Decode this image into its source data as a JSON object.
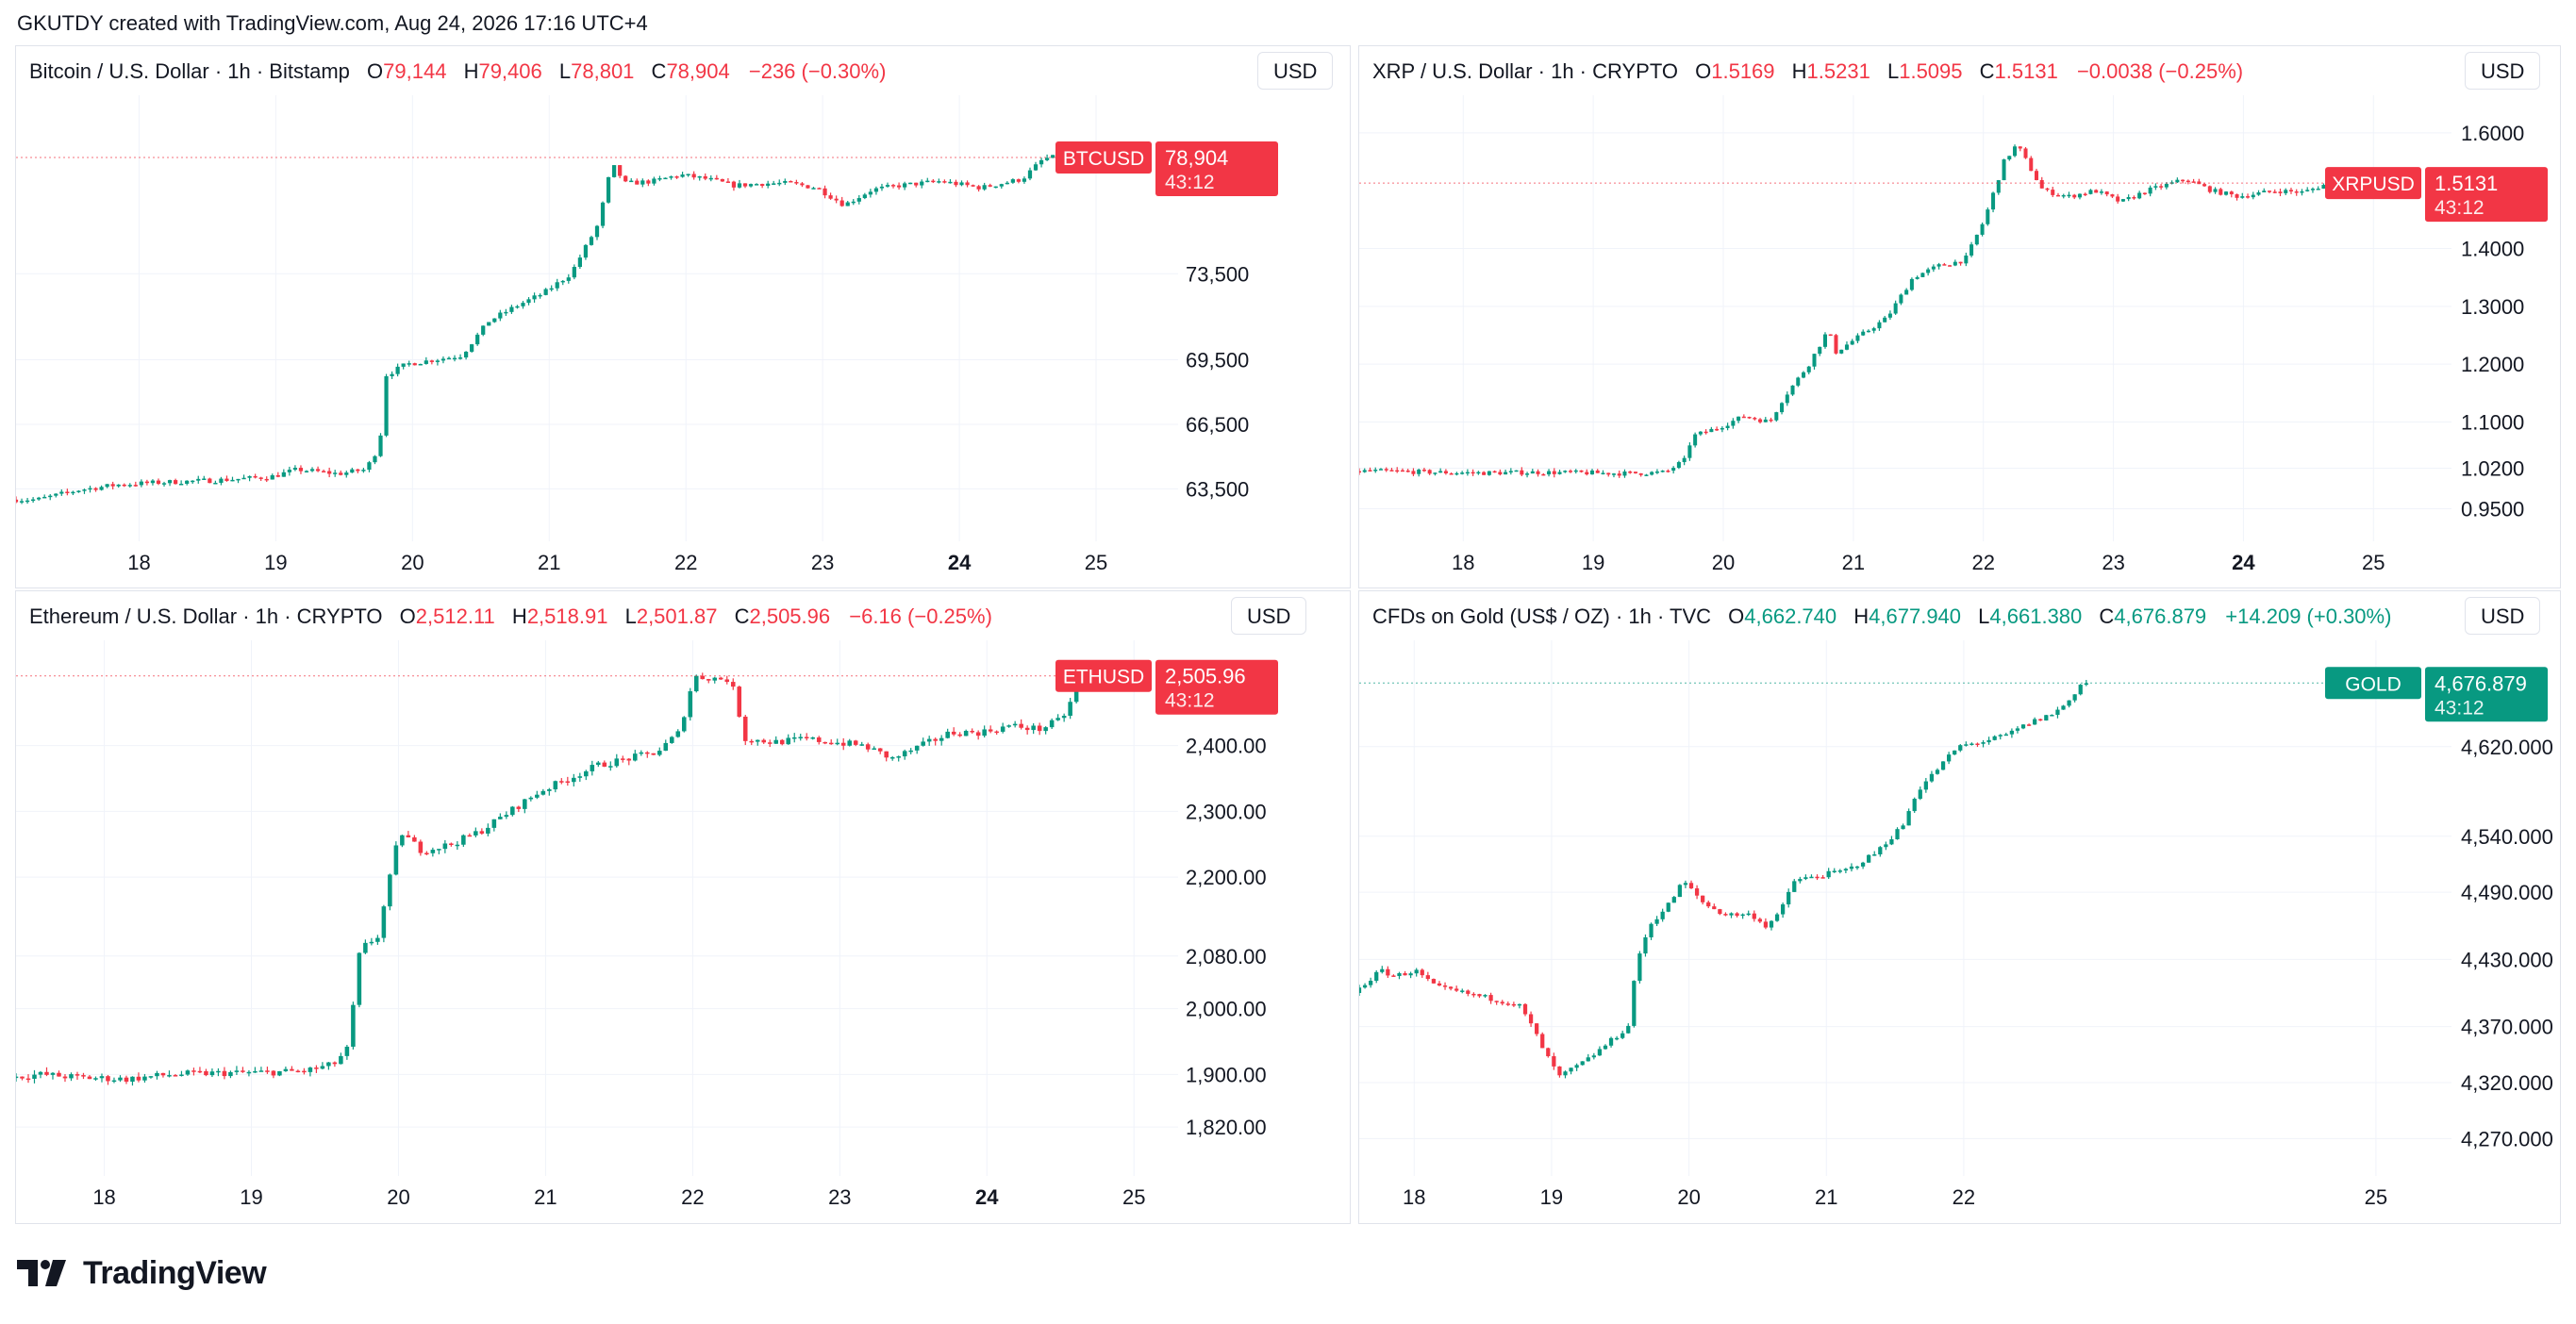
{
  "header": {
    "text": "GKUTDY created with TradingView.com, Aug 24, 2026 17:16 UTC+4"
  },
  "footer": {
    "logo_text": "TradingView"
  },
  "colors": {
    "up": "#089981",
    "down": "#f23645",
    "grid": "#f0f3fa",
    "axis_text": "#131722"
  },
  "chart_data": [
    {
      "id": "btc",
      "type": "candlestick",
      "legend": {
        "name": "Bitcoin / U.S. Dollar · 1h · Bitstamp",
        "o": "79,144",
        "h": "79,406",
        "l": "78,801",
        "c": "78,904",
        "change": "−236 (−0.30%)",
        "color": "#f23645"
      },
      "currency": "USD",
      "symbol": "BTCUSD",
      "last_price": "78,904",
      "last": 78904,
      "countdown": "43:12",
      "last_color": "#f23645",
      "y_ticks": [
        73500,
        69500,
        66500,
        63500
      ],
      "y_tick_labels": [
        "73,500",
        "69,500",
        "66,500",
        "63,500"
      ],
      "ylim": [
        61500,
        81800
      ],
      "x_days": [
        18,
        19,
        20,
        21,
        22,
        23,
        24,
        25
      ],
      "x_start": 17.1,
      "x_end": 25.6,
      "bold_day": 24,
      "path": [
        [
          17.1,
          63000
        ],
        [
          17.3,
          63000
        ],
        [
          17.6,
          63450
        ],
        [
          17.9,
          63700
        ],
        [
          18.2,
          63800
        ],
        [
          18.6,
          63900
        ],
        [
          19.0,
          64050
        ],
        [
          19.2,
          64400
        ],
        [
          19.5,
          64200
        ],
        [
          19.7,
          64400
        ],
        [
          19.8,
          65500
        ],
        [
          19.85,
          68800
        ],
        [
          20.0,
          69300
        ],
        [
          20.2,
          69500
        ],
        [
          20.4,
          69700
        ],
        [
          20.6,
          71300
        ],
        [
          20.8,
          72000
        ],
        [
          21.0,
          72600
        ],
        [
          21.2,
          73500
        ],
        [
          21.4,
          75800
        ],
        [
          21.5,
          78600
        ],
        [
          21.6,
          77700
        ],
        [
          21.8,
          77800
        ],
        [
          22.0,
          78100
        ],
        [
          22.2,
          77900
        ],
        [
          22.4,
          77600
        ],
        [
          22.6,
          77700
        ],
        [
          22.8,
          77700
        ],
        [
          23.0,
          77500
        ],
        [
          23.2,
          76700
        ],
        [
          23.4,
          77400
        ],
        [
          23.6,
          77600
        ],
        [
          23.9,
          77800
        ],
        [
          24.2,
          77500
        ],
        [
          24.5,
          77900
        ],
        [
          24.65,
          78800
        ],
        [
          24.7,
          78904
        ]
      ],
      "noise": 200
    },
    {
      "id": "xrp",
      "type": "candlestick",
      "legend": {
        "name": "XRP / U.S. Dollar · 1h · CRYPTO",
        "o": "1.5169",
        "h": "1.5231",
        "l": "1.5095",
        "c": "1.5131",
        "change": "−0.0038 (−0.25%)",
        "color": "#f23645"
      },
      "currency": "USD",
      "symbol": "XRPUSD",
      "last_price": "1.5131",
      "last": 1.5131,
      "countdown": "43:12",
      "last_color": "#f23645",
      "y_ticks": [
        1.6,
        1.4,
        1.3,
        1.2,
        1.1,
        1.02,
        0.95
      ],
      "y_tick_labels": [
        "1.6000",
        "1.4000",
        "1.3000",
        "1.2000",
        "1.1000",
        "1.0200",
        "0.9500"
      ],
      "ylim": [
        0.91,
        1.665
      ],
      "x_days": [
        18,
        19,
        20,
        21,
        22,
        23,
        24,
        25
      ],
      "x_start": 17.2,
      "x_end": 25.6,
      "bold_day": 24,
      "path": [
        [
          17.2,
          1.015
        ],
        [
          17.5,
          1.015
        ],
        [
          17.8,
          1.013
        ],
        [
          18.2,
          1.012
        ],
        [
          18.6,
          1.013
        ],
        [
          19.0,
          1.012
        ],
        [
          19.3,
          1.011
        ],
        [
          19.6,
          1.013
        ],
        [
          19.75,
          1.035
        ],
        [
          19.8,
          1.075
        ],
        [
          20.0,
          1.09
        ],
        [
          20.2,
          1.11
        ],
        [
          20.4,
          1.1
        ],
        [
          20.5,
          1.14
        ],
        [
          20.7,
          1.2
        ],
        [
          20.85,
          1.26
        ],
        [
          20.9,
          1.22
        ],
        [
          21.1,
          1.25
        ],
        [
          21.3,
          1.28
        ],
        [
          21.5,
          1.35
        ],
        [
          21.7,
          1.37
        ],
        [
          21.9,
          1.38
        ],
        [
          22.05,
          1.45
        ],
        [
          22.2,
          1.55
        ],
        [
          22.3,
          1.58
        ],
        [
          22.5,
          1.5
        ],
        [
          22.7,
          1.49
        ],
        [
          22.9,
          1.5
        ],
        [
          23.1,
          1.48
        ],
        [
          23.3,
          1.5
        ],
        [
          23.6,
          1.52
        ],
        [
          23.8,
          1.5
        ],
        [
          24.0,
          1.49
        ],
        [
          24.3,
          1.5
        ],
        [
          24.5,
          1.497
        ],
        [
          24.7,
          1.5131
        ]
      ],
      "noise": 0.007
    },
    {
      "id": "eth",
      "type": "candlestick",
      "legend": {
        "name": "Ethereum / U.S. Dollar · 1h · CRYPTO",
        "o": "2,512.11",
        "h": "2,518.91",
        "l": "2,501.87",
        "c": "2,505.96",
        "change": "−6.16 (−0.25%)",
        "color": "#f23645"
      },
      "currency": "USD",
      "symbol": "ETHUSD",
      "last_price": "2,505.96",
      "last": 2505.96,
      "countdown": "43:12",
      "last_color": "#f23645",
      "y_ticks": [
        2400,
        2300,
        2200,
        2080,
        2000,
        1900,
        1820
      ],
      "y_tick_labels": [
        "2,400.00",
        "2,300.00",
        "2,200.00",
        "2,080.00",
        "2,000.00",
        "1,900.00",
        "1,820.00"
      ],
      "ylim": [
        1760,
        2560
      ],
      "x_days": [
        18,
        19,
        20,
        21,
        22,
        23,
        24,
        25
      ],
      "x_start": 17.4,
      "x_end": 25.3,
      "bold_day": 24,
      "path": [
        [
          17.4,
          1895
        ],
        [
          17.6,
          1900
        ],
        [
          17.9,
          1895
        ],
        [
          18.2,
          1893
        ],
        [
          18.5,
          1900
        ],
        [
          18.8,
          1902
        ],
        [
          19.1,
          1903
        ],
        [
          19.4,
          1905
        ],
        [
          19.6,
          1915
        ],
        [
          19.7,
          1940
        ],
        [
          19.78,
          2090
        ],
        [
          19.9,
          2110
        ],
        [
          20.05,
          2270
        ],
        [
          20.2,
          2240
        ],
        [
          20.4,
          2250
        ],
        [
          20.6,
          2270
        ],
        [
          20.8,
          2300
        ],
        [
          21.0,
          2330
        ],
        [
          21.2,
          2350
        ],
        [
          21.4,
          2370
        ],
        [
          21.6,
          2380
        ],
        [
          21.8,
          2390
        ],
        [
          21.95,
          2420
        ],
        [
          22.05,
          2505
        ],
        [
          22.3,
          2500
        ],
        [
          22.4,
          2410
        ],
        [
          22.6,
          2405
        ],
        [
          22.8,
          2410
        ],
        [
          23.0,
          2405
        ],
        [
          23.2,
          2400
        ],
        [
          23.4,
          2380
        ],
        [
          23.6,
          2400
        ],
        [
          23.8,
          2420
        ],
        [
          24.0,
          2420
        ],
        [
          24.2,
          2430
        ],
        [
          24.4,
          2425
        ],
        [
          24.55,
          2440
        ],
        [
          24.7,
          2505
        ]
      ],
      "noise": 9
    },
    {
      "id": "gold",
      "type": "candlestick",
      "legend": {
        "name": "CFDs on Gold (US$ / OZ) · 1h · TVC",
        "o": "4,662.740",
        "h": "4,677.940",
        "l": "4,661.380",
        "c": "4,676.879",
        "change": "+14.209 (+0.30%)",
        "color": "#089981"
      },
      "currency": "USD",
      "symbol": "GOLD",
      "last_price": "4,676.879",
      "last": 4676.879,
      "countdown": "43:12",
      "last_color": "#089981",
      "y_ticks": [
        4620,
        4540,
        4490,
        4430,
        4370,
        4320,
        4270
      ],
      "y_tick_labels": [
        "4,620.000",
        "4,540.000",
        "4,490.000",
        "4,430.000",
        "4,370.000",
        "4,320.000",
        "4,270.000"
      ],
      "ylim": [
        4245,
        4715
      ],
      "x_days": [
        18,
        19,
        20,
        21,
        22,
        25
      ],
      "x_start": 17.6,
      "x_end": 25.55,
      "bold_day": null,
      "path": [
        [
          17.6,
          4400
        ],
        [
          17.7,
          4410
        ],
        [
          17.8,
          4420
        ],
        [
          17.9,
          4415
        ],
        [
          18.05,
          4420
        ],
        [
          18.2,
          4405
        ],
        [
          18.4,
          4400
        ],
        [
          18.6,
          4395
        ],
        [
          18.8,
          4390
        ],
        [
          18.9,
          4370
        ],
        [
          19.0,
          4345
        ],
        [
          19.1,
          4325
        ],
        [
          19.3,
          4340
        ],
        [
          19.5,
          4360
        ],
        [
          19.6,
          4370
        ],
        [
          19.65,
          4420
        ],
        [
          19.75,
          4460
        ],
        [
          19.9,
          4480
        ],
        [
          20.0,
          4500
        ],
        [
          20.15,
          4480
        ],
        [
          20.3,
          4470
        ],
        [
          20.5,
          4470
        ],
        [
          20.6,
          4460
        ],
        [
          20.7,
          4470
        ],
        [
          20.8,
          4500
        ],
        [
          21.0,
          4505
        ],
        [
          21.2,
          4510
        ],
        [
          21.4,
          4525
        ],
        [
          21.6,
          4550
        ],
        [
          21.7,
          4580
        ],
        [
          21.85,
          4600
        ],
        [
          22.0,
          4620
        ],
        [
          22.2,
          4625
        ],
        [
          22.35,
          4630
        ],
        [
          22.5,
          4640
        ],
        [
          22.7,
          4650
        ],
        [
          22.8,
          4660
        ],
        [
          22.9,
          4676.879
        ]
      ],
      "noise": 4
    }
  ]
}
